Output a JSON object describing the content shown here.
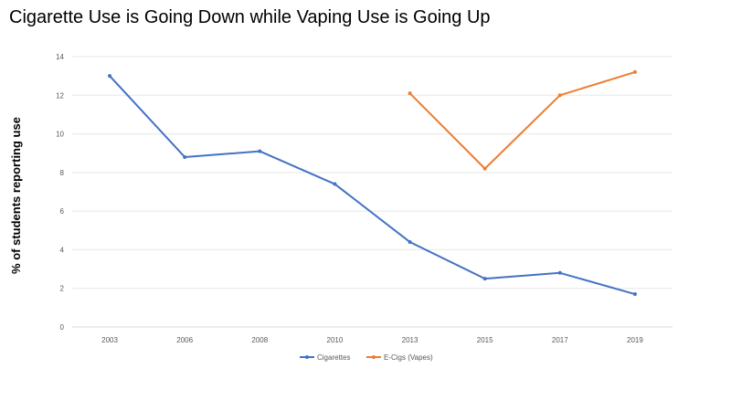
{
  "chart_data": {
    "type": "line",
    "title": "Cigarette Use is Going Down while Vaping Use is Going Up",
    "xlabel": "",
    "ylabel": "% of  students reporting use",
    "categories": [
      "2003",
      "2006",
      "2008",
      "2010",
      "2013",
      "2015",
      "2017",
      "2019"
    ],
    "ylim": [
      0,
      14
    ],
    "yticks": [
      0,
      2,
      4,
      6,
      8,
      10,
      12,
      14
    ],
    "grid": true,
    "legend_position": "bottom",
    "series": [
      {
        "name": "Cigarettes",
        "color": "#4472C4",
        "values": [
          13.0,
          8.8,
          9.1,
          7.4,
          4.4,
          2.5,
          2.8,
          1.7
        ]
      },
      {
        "name": "E-Cigs (Vapes)",
        "color": "#ED7D31",
        "values": [
          null,
          null,
          null,
          null,
          12.1,
          8.2,
          12.0,
          13.2
        ]
      }
    ]
  }
}
